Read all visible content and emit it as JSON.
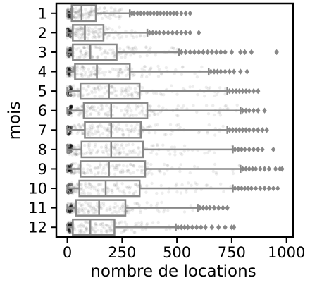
{
  "chart_data": {
    "type": "boxplot",
    "orientation": "horizontal",
    "xlabel": "nombre de locations",
    "ylabel": "mois",
    "xlim": [
      -50,
      1030
    ],
    "xticks": [
      0,
      250,
      500,
      750,
      1000
    ],
    "grid": false,
    "legend": "none",
    "colors": {
      "box": "#888888",
      "points": "#000000",
      "outliers": "#888888"
    },
    "categories": [
      "1",
      "2",
      "3",
      "4",
      "5",
      "6",
      "7",
      "8",
      "9",
      "10",
      "11",
      "12"
    ],
    "boxes": [
      {
        "month": "1",
        "q1": 20,
        "median": 65,
        "q3": 130,
        "whisker_low": 0,
        "whisker_high": 285,
        "outliers": [
          295,
          305,
          320,
          335,
          350,
          365,
          380,
          395,
          410,
          425,
          440,
          455,
          470,
          485,
          500,
          520,
          540,
          560
        ]
      },
      {
        "month": "2",
        "q1": 25,
        "median": 80,
        "q3": 165,
        "whisker_low": 0,
        "whisker_high": 365,
        "outliers": [
          375,
          390,
          405,
          420,
          440,
          460,
          480,
          500,
          520,
          540,
          560,
          600
        ]
      },
      {
        "month": "3",
        "q1": 25,
        "median": 105,
        "q3": 225,
        "whisker_low": 0,
        "whisker_high": 510,
        "outliers": [
          520,
          540,
          560,
          580,
          600,
          620,
          640,
          660,
          680,
          700,
          720,
          750,
          790,
          810,
          840,
          955
        ]
      },
      {
        "month": "4",
        "q1": 35,
        "median": 135,
        "q3": 285,
        "whisker_low": 0,
        "whisker_high": 645,
        "outliers": [
          655,
          670,
          685,
          700,
          720,
          740,
          760,
          790,
          820
        ]
      },
      {
        "month": "5",
        "q1": 60,
        "median": 190,
        "q3": 330,
        "whisker_low": 0,
        "whisker_high": 730,
        "outliers": [
          740,
          755,
          770,
          785,
          800,
          815,
          830,
          850,
          870
        ]
      },
      {
        "month": "6",
        "q1": 75,
        "median": 200,
        "q3": 365,
        "whisker_low": 0,
        "whisker_high": 790,
        "outliers": [
          800,
          815,
          830,
          850,
          870,
          900
        ]
      },
      {
        "month": "7",
        "q1": 80,
        "median": 200,
        "q3": 335,
        "whisker_low": 0,
        "whisker_high": 730,
        "outliers": [
          740,
          755,
          770,
          785,
          800,
          815,
          830,
          850,
          870,
          890,
          910
        ]
      },
      {
        "month": "8",
        "q1": 65,
        "median": 200,
        "q3": 345,
        "whisker_low": 0,
        "whisker_high": 755,
        "outliers": [
          765,
          780,
          795,
          810,
          830,
          850,
          870,
          890,
          940
        ]
      },
      {
        "month": "9",
        "q1": 60,
        "median": 190,
        "q3": 355,
        "whisker_low": 0,
        "whisker_high": 790,
        "outliers": [
          800,
          815,
          830,
          845,
          860,
          880,
          900,
          920,
          950,
          970,
          980
        ]
      },
      {
        "month": "10",
        "q1": 55,
        "median": 175,
        "q3": 330,
        "whisker_low": 0,
        "whisker_high": 755,
        "outliers": [
          765,
          780,
          795,
          810,
          825,
          840,
          860,
          880,
          900,
          920,
          940,
          960
        ]
      },
      {
        "month": "11",
        "q1": 40,
        "median": 145,
        "q3": 265,
        "whisker_low": 0,
        "whisker_high": 595,
        "outliers": [
          605,
          620,
          635,
          650,
          670,
          690,
          710,
          730
        ]
      },
      {
        "month": "12",
        "q1": 25,
        "median": 105,
        "q3": 215,
        "whisker_low": 0,
        "whisker_high": 495,
        "outliers": [
          505,
          520,
          535,
          550,
          570,
          590,
          610,
          630,
          660,
          690,
          720,
          750,
          760
        ]
      }
    ]
  }
}
